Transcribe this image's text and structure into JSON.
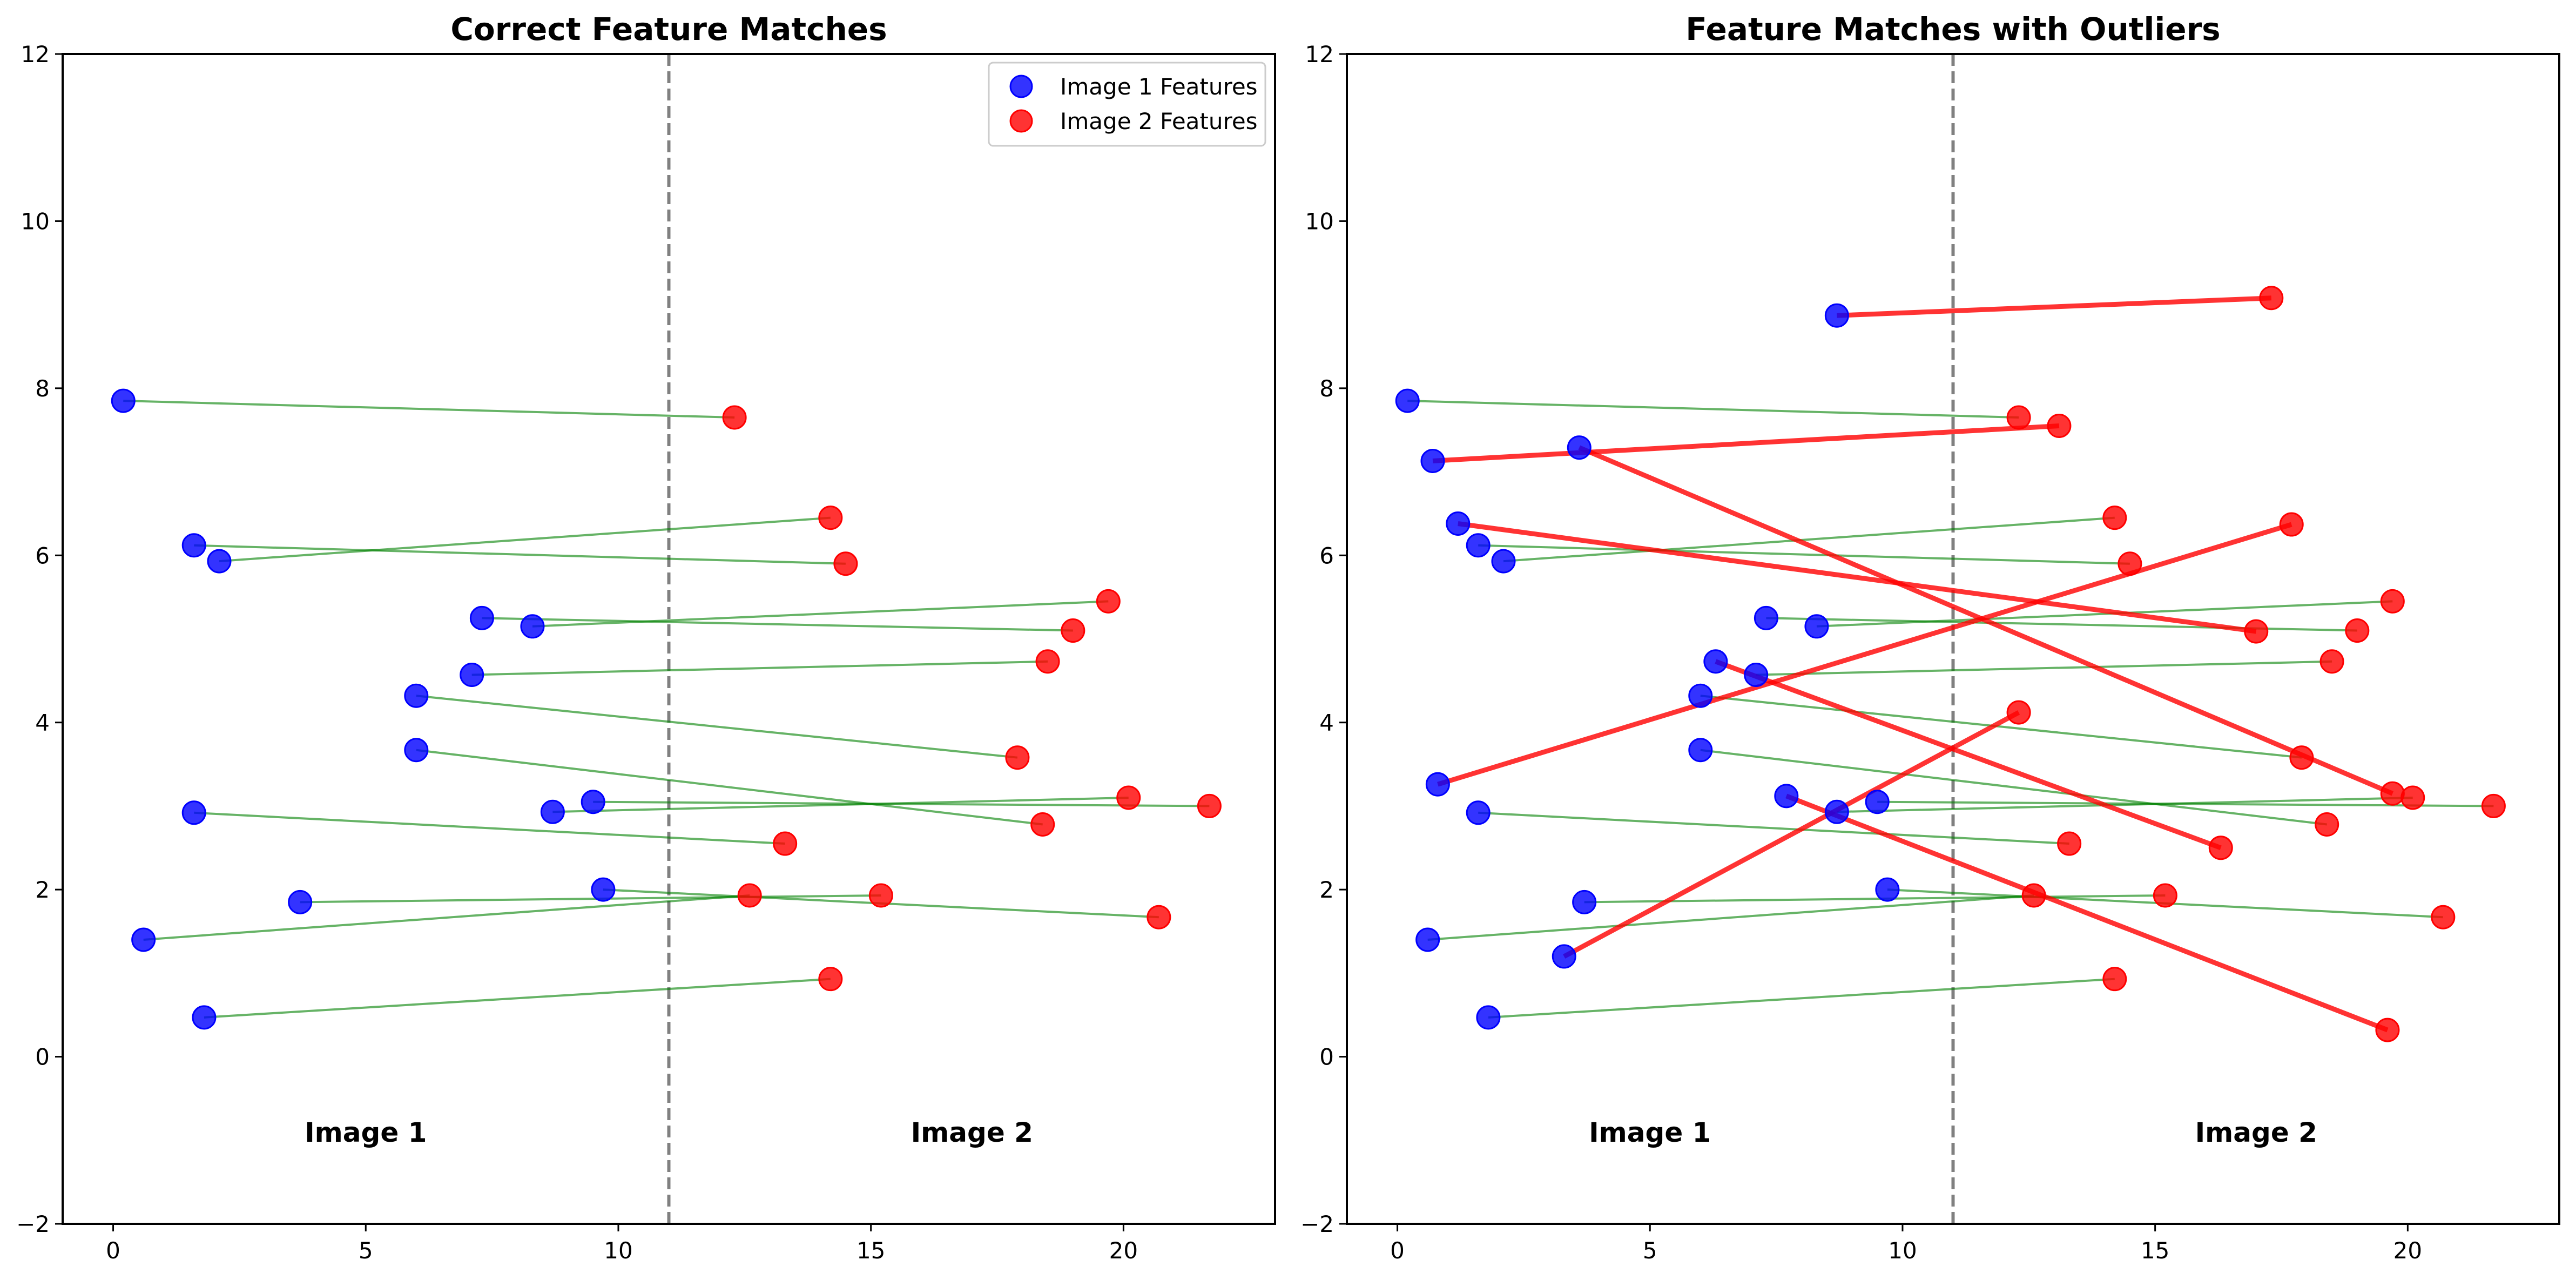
{
  "chart_data": [
    {
      "type": "scatter",
      "title": "Correct Feature Matches",
      "xlabel": "",
      "ylabel": "",
      "xlim": [
        -1.0,
        23.0
      ],
      "ylim": [
        -2,
        12
      ],
      "xticks": [
        0,
        5,
        10,
        15,
        20
      ],
      "yticks": [
        -2,
        0,
        2,
        4,
        6,
        8,
        10,
        12
      ],
      "xtick_labels": [
        "0",
        "5",
        "10",
        "15",
        "20"
      ],
      "ytick_labels": [
        "−2",
        "0",
        "2",
        "4",
        "6",
        "8",
        "10",
        "12"
      ],
      "grid": false,
      "divider_x": 11,
      "annotations": [
        {
          "text": "Image 1",
          "x": 5,
          "y": -0.9
        },
        {
          "text": "Image 2",
          "x": 17,
          "y": -0.9
        }
      ],
      "legend": {
        "placement": "top-right",
        "entries": [
          {
            "label": "Image 1 Features",
            "color": "#0000ff"
          },
          {
            "label": "Image 2 Features",
            "color": "#ff0000"
          }
        ]
      },
      "colors": {
        "image1": "#0000ff",
        "image2": "#ff0000",
        "inlier": "#008000",
        "outlier": "#ff0000",
        "divider": "#808080"
      },
      "matches": [
        {
          "p1": [
            0.2,
            7.85
          ],
          "p2": [
            12.3,
            7.65
          ],
          "kind": "inlier"
        },
        {
          "p1": [
            1.6,
            6.12
          ],
          "p2": [
            14.5,
            5.9
          ],
          "kind": "inlier"
        },
        {
          "p1": [
            2.1,
            5.93
          ],
          "p2": [
            14.2,
            6.45
          ],
          "kind": "inlier"
        },
        {
          "p1": [
            7.3,
            5.25
          ],
          "p2": [
            19.0,
            5.1
          ],
          "kind": "inlier"
        },
        {
          "p1": [
            8.3,
            5.15
          ],
          "p2": [
            19.7,
            5.45
          ],
          "kind": "inlier"
        },
        {
          "p1": [
            7.1,
            4.57
          ],
          "p2": [
            18.5,
            4.73
          ],
          "kind": "inlier"
        },
        {
          "p1": [
            6.0,
            4.32
          ],
          "p2": [
            17.9,
            3.58
          ],
          "kind": "inlier"
        },
        {
          "p1": [
            6.0,
            3.67
          ],
          "p2": [
            18.4,
            2.78
          ],
          "kind": "inlier"
        },
        {
          "p1": [
            9.5,
            3.05
          ],
          "p2": [
            21.7,
            3.0
          ],
          "kind": "inlier"
        },
        {
          "p1": [
            8.7,
            2.93
          ],
          "p2": [
            20.1,
            3.1
          ],
          "kind": "inlier"
        },
        {
          "p1": [
            1.6,
            2.92
          ],
          "p2": [
            13.3,
            2.55
          ],
          "kind": "inlier"
        },
        {
          "p1": [
            9.7,
            2.0
          ],
          "p2": [
            20.7,
            1.67
          ],
          "kind": "inlier"
        },
        {
          "p1": [
            3.7,
            1.85
          ],
          "p2": [
            15.2,
            1.93
          ],
          "kind": "inlier"
        },
        {
          "p1": [
            0.6,
            1.4
          ],
          "p2": [
            12.6,
            1.93
          ],
          "kind": "inlier"
        },
        {
          "p1": [
            1.8,
            0.47
          ],
          "p2": [
            14.2,
            0.93
          ],
          "kind": "inlier"
        }
      ]
    },
    {
      "type": "scatter",
      "title": "Feature Matches with Outliers",
      "xlabel": "",
      "ylabel": "",
      "xlim": [
        -1.0,
        23.0
      ],
      "ylim": [
        -2,
        12
      ],
      "xticks": [
        0,
        5,
        10,
        15,
        20
      ],
      "yticks": [
        -2,
        0,
        2,
        4,
        6,
        8,
        10,
        12
      ],
      "xtick_labels": [
        "0",
        "5",
        "10",
        "15",
        "20"
      ],
      "ytick_labels": [
        "−2",
        "0",
        "2",
        "4",
        "6",
        "8",
        "10",
        "12"
      ],
      "grid": false,
      "divider_x": 11,
      "annotations": [
        {
          "text": "Image 1",
          "x": 5,
          "y": -0.9
        },
        {
          "text": "Image 2",
          "x": 17,
          "y": -0.9
        }
      ],
      "legend": null,
      "colors": {
        "image1": "#0000ff",
        "image2": "#ff0000",
        "inlier": "#008000",
        "outlier": "#ff0000",
        "divider": "#808080"
      },
      "matches": [
        {
          "p1": [
            0.2,
            7.85
          ],
          "p2": [
            12.3,
            7.65
          ],
          "kind": "inlier"
        },
        {
          "p1": [
            1.6,
            6.12
          ],
          "p2": [
            14.5,
            5.9
          ],
          "kind": "inlier"
        },
        {
          "p1": [
            2.1,
            5.93
          ],
          "p2": [
            14.2,
            6.45
          ],
          "kind": "inlier"
        },
        {
          "p1": [
            7.3,
            5.25
          ],
          "p2": [
            19.0,
            5.1
          ],
          "kind": "inlier"
        },
        {
          "p1": [
            8.3,
            5.15
          ],
          "p2": [
            19.7,
            5.45
          ],
          "kind": "inlier"
        },
        {
          "p1": [
            7.1,
            4.57
          ],
          "p2": [
            18.5,
            4.73
          ],
          "kind": "inlier"
        },
        {
          "p1": [
            6.0,
            4.32
          ],
          "p2": [
            17.9,
            3.58
          ],
          "kind": "inlier"
        },
        {
          "p1": [
            6.0,
            3.67
          ],
          "p2": [
            18.4,
            2.78
          ],
          "kind": "inlier"
        },
        {
          "p1": [
            9.5,
            3.05
          ],
          "p2": [
            21.7,
            3.0
          ],
          "kind": "inlier"
        },
        {
          "p1": [
            8.7,
            2.93
          ],
          "p2": [
            20.1,
            3.1
          ],
          "kind": "inlier"
        },
        {
          "p1": [
            1.6,
            2.92
          ],
          "p2": [
            13.3,
            2.55
          ],
          "kind": "inlier"
        },
        {
          "p1": [
            9.7,
            2.0
          ],
          "p2": [
            20.7,
            1.67
          ],
          "kind": "inlier"
        },
        {
          "p1": [
            3.7,
            1.85
          ],
          "p2": [
            15.2,
            1.93
          ],
          "kind": "inlier"
        },
        {
          "p1": [
            0.6,
            1.4
          ],
          "p2": [
            12.6,
            1.93
          ],
          "kind": "inlier"
        },
        {
          "p1": [
            1.8,
            0.47
          ],
          "p2": [
            14.2,
            0.93
          ],
          "kind": "inlier"
        },
        {
          "p1": [
            8.7,
            8.87
          ],
          "p2": [
            17.3,
            9.08
          ],
          "kind": "outlier"
        },
        {
          "p1": [
            0.7,
            7.13
          ],
          "p2": [
            13.1,
            7.55
          ],
          "kind": "outlier"
        },
        {
          "p1": [
            3.6,
            7.29
          ],
          "p2": [
            19.7,
            3.15
          ],
          "kind": "outlier"
        },
        {
          "p1": [
            1.2,
            6.38
          ],
          "p2": [
            17.0,
            5.09
          ],
          "kind": "outlier"
        },
        {
          "p1": [
            0.8,
            3.26
          ],
          "p2": [
            17.7,
            6.37
          ],
          "kind": "outlier"
        },
        {
          "p1": [
            6.3,
            4.73
          ],
          "p2": [
            16.3,
            2.5
          ],
          "kind": "outlier"
        },
        {
          "p1": [
            3.3,
            1.2
          ],
          "p2": [
            12.3,
            4.12
          ],
          "kind": "outlier"
        },
        {
          "p1": [
            7.7,
            3.12
          ],
          "p2": [
            19.6,
            0.32
          ],
          "kind": "outlier"
        }
      ]
    }
  ]
}
